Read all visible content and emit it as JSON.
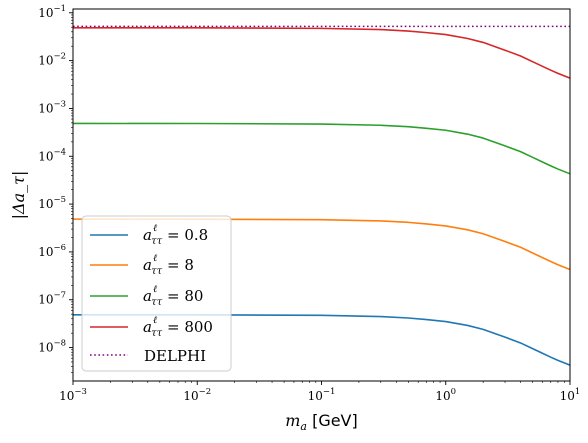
{
  "chart_data": {
    "type": "line",
    "xlabel_math": "m",
    "xlabel_sub": "a",
    "xlabel_unit": "[GeV]",
    "ylabel": "|Δa_τ|",
    "xscale": "log",
    "yscale": "log",
    "xlim": [
      0.001,
      10
    ],
    "ylim": [
      2e-09,
      0.12
    ],
    "x_ticks": [
      {
        "base": "10",
        "exp": "−3",
        "value": 0.001
      },
      {
        "base": "10",
        "exp": "−2",
        "value": 0.01
      },
      {
        "base": "10",
        "exp": "−1",
        "value": 0.1
      },
      {
        "base": "10",
        "exp": "0",
        "value": 1
      },
      {
        "base": "10",
        "exp": "1",
        "value": 10
      }
    ],
    "y_ticks": [
      {
        "base": "10",
        "exp": "−8",
        "value": 1e-08
      },
      {
        "base": "10",
        "exp": "−7",
        "value": 1e-07
      },
      {
        "base": "10",
        "exp": "−6",
        "value": 1e-06
      },
      {
        "base": "10",
        "exp": "−5",
        "value": 1e-05
      },
      {
        "base": "10",
        "exp": "−4",
        "value": 0.0001
      },
      {
        "base": "10",
        "exp": "−3",
        "value": 0.001
      },
      {
        "base": "10",
        "exp": "−2",
        "value": 0.01
      },
      {
        "base": "10",
        "exp": "−1",
        "value": 0.1
      }
    ],
    "x": [
      0.001,
      0.01,
      0.1,
      0.3,
      0.5,
      0.7,
      1.0,
      1.5,
      2.0,
      3.0,
      4.0,
      5.0,
      6.0,
      7.0,
      8.0,
      10.0
    ],
    "series": [
      {
        "legend_value": "0.8",
        "color": "#1f77b4",
        "values": [
          4.85e-08,
          4.84e-08,
          4.72e-08,
          4.45e-08,
          4.15e-08,
          3.85e-08,
          3.5e-08,
          2.9e-08,
          2.4e-08,
          1.65e-08,
          1.25e-08,
          9.5e-09,
          7.6e-09,
          6.3e-09,
          5.4e-09,
          4.3e-09
        ]
      },
      {
        "legend_value": "8",
        "color": "#ff7f0e",
        "values": [
          4.85e-06,
          4.84e-06,
          4.72e-06,
          4.45e-06,
          4.15e-06,
          3.85e-06,
          3.5e-06,
          2.9e-06,
          2.4e-06,
          1.65e-06,
          1.25e-06,
          9.5e-07,
          7.6e-07,
          6.3e-07,
          5.4e-07,
          4.3e-07
        ]
      },
      {
        "legend_value": "80",
        "color": "#2ca02c",
        "values": [
          0.000485,
          0.000484,
          0.000472,
          0.000445,
          0.000415,
          0.000385,
          0.00035,
          0.00029,
          0.00024,
          0.000165,
          0.000125,
          9.5e-05,
          7.6e-05,
          6.3e-05,
          5.4e-05,
          4.3e-05
        ]
      },
      {
        "legend_value": "800",
        "color": "#d62728",
        "values": [
          0.0485,
          0.0484,
          0.0472,
          0.0445,
          0.0415,
          0.0385,
          0.035,
          0.029,
          0.024,
          0.0165,
          0.0125,
          0.0095,
          0.0076,
          0.0063,
          0.0054,
          0.0043
        ]
      }
    ],
    "legend_symbol": "a",
    "legend_sup": "ℓ",
    "legend_sub": "ττ",
    "legend_eq": "=",
    "delphi": {
      "name": "DELPHI",
      "value": 0.052,
      "color": "#800080"
    },
    "legend_position": "lower-left",
    "grid": false
  }
}
